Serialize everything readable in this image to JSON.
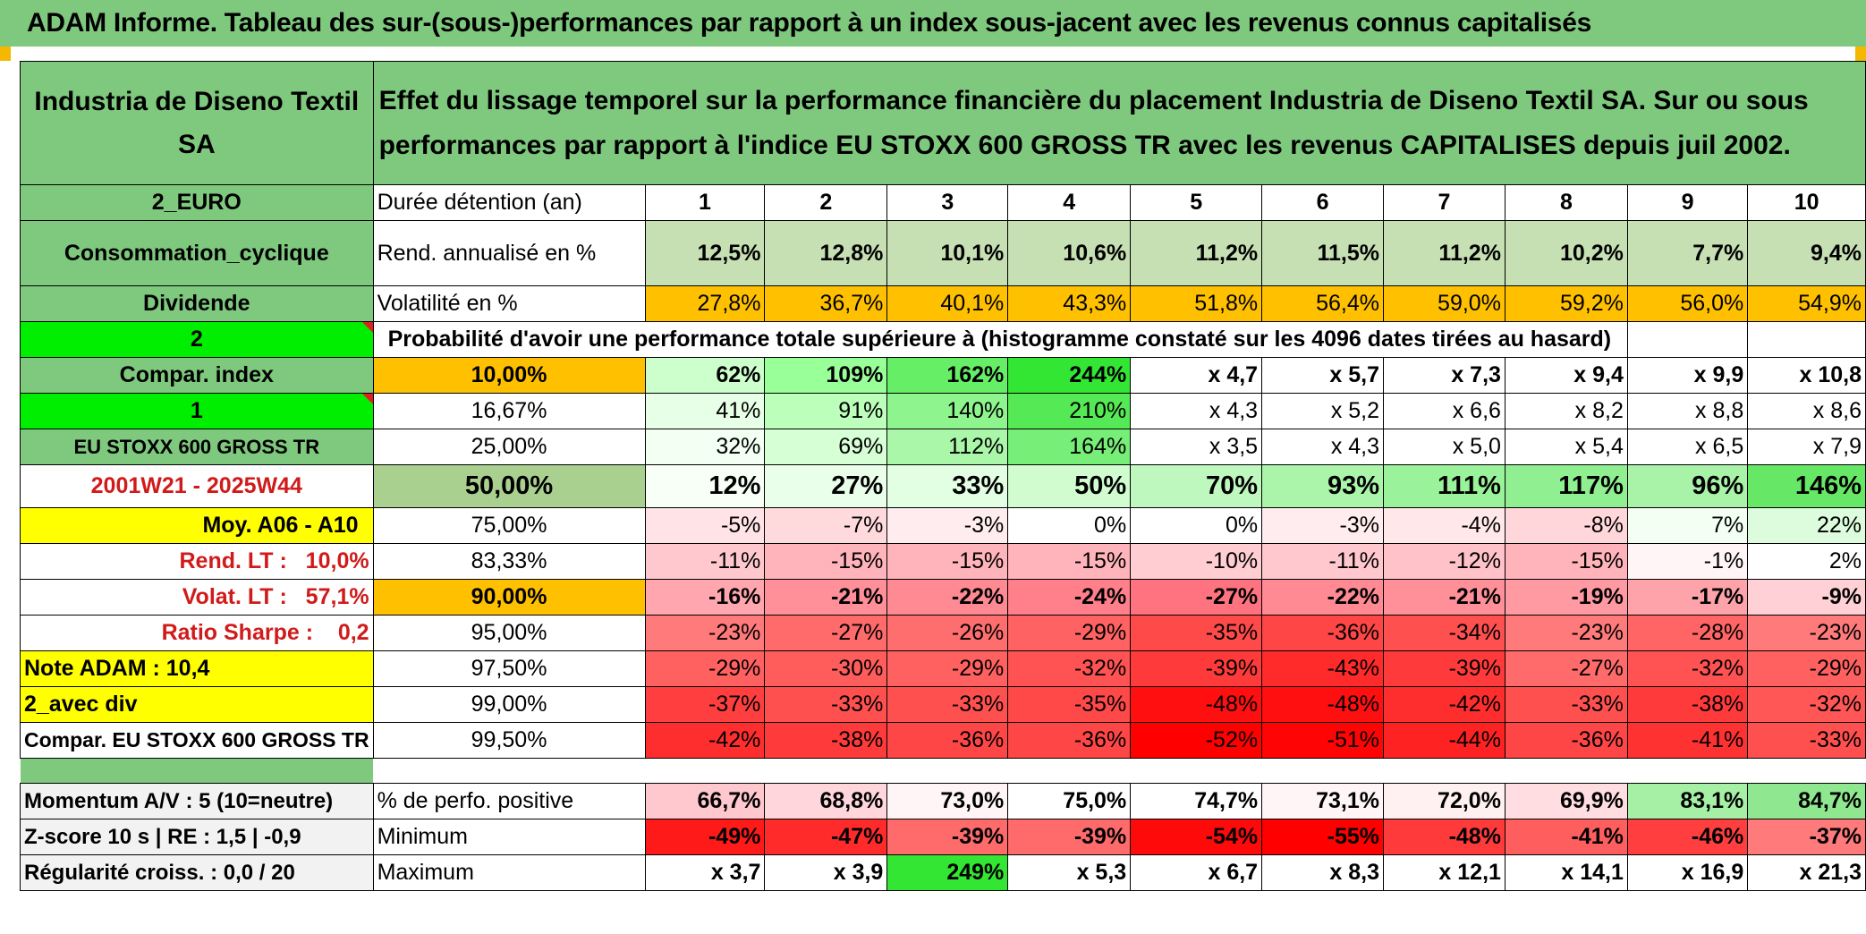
{
  "title": "ADAM Informe. Tableau des sur-(sous-)performances par rapport à un index sous-jacent avec les revenus connus capitalisés",
  "header": {
    "company": "Industria de Diseno Textil SA",
    "description": "Effet du lissage temporel sur la performance financière du placement Industria de Diseno Textil SA. Sur ou sous performances par rapport à l'indice EU STOXX 600 GROSS TR avec les revenus CAPITALISES depuis juil 2002."
  },
  "colors": {
    "green_header": "#7fc97f",
    "orange": "#ffc000",
    "yellow": "#ffff00",
    "bright_green": "#00ee00",
    "red_text": "#d11a1a"
  },
  "left_labels": {
    "currency": "2_EURO",
    "sector": "Consommation_cyclique",
    "dividend": "Dividende",
    "n2": "2",
    "compar_index": "Compar. index",
    "n1": "1",
    "index_name": "EU STOXX 600 GROSS TR",
    "period": "2001W21 - 2025W44",
    "moy": "Moy. A06 - A10",
    "rend_lt": "Rend. LT :   10,0%",
    "volat_lt": "Volat. LT :   57,1%",
    "sharpe": "Ratio Sharpe :    0,2",
    "note": "Note ADAM : 10,4",
    "avec_div": "2_avec div",
    "compar_full": "Compar. EU STOXX 600 GROSS TR",
    "momentum": "Momentum A/V : 5 (10=neutre)",
    "zscore": "Z-score 10 s | RE : 1,5 | -0,9",
    "regularite": "Régularité croiss. : 0,0 / 20"
  },
  "row_labels": {
    "duration": "Durée détention (an)",
    "rend": "Rend. annualisé en %",
    "volat": "Volatilité en %",
    "proba": "Probabilité d'avoir une performance totale supérieure à (histogramme constaté sur les 4096 dates tirées au hasard)",
    "pos": "% de perfo. positive",
    "min": "Minimum",
    "max": "Maximum"
  },
  "years": [
    "1",
    "2",
    "3",
    "4",
    "5",
    "6",
    "7",
    "8",
    "9",
    "10"
  ],
  "rend": [
    "12,5%",
    "12,8%",
    "10,1%",
    "10,6%",
    "11,2%",
    "11,5%",
    "11,2%",
    "10,2%",
    "7,7%",
    "9,4%"
  ],
  "volat": [
    "27,8%",
    "36,7%",
    "40,1%",
    "43,3%",
    "51,8%",
    "56,4%",
    "59,0%",
    "59,2%",
    "56,0%",
    "54,9%"
  ],
  "proba_rows": [
    {
      "pct": "10,00%",
      "vals": [
        "62%",
        "109%",
        "162%",
        "244%",
        "x 4,7",
        "x 5,7",
        "x 7,3",
        "x 9,4",
        "x 9,9",
        "x 10,8"
      ]
    },
    {
      "pct": "16,67%",
      "vals": [
        "41%",
        "91%",
        "140%",
        "210%",
        "x 4,3",
        "x 5,2",
        "x 6,6",
        "x 8,2",
        "x 8,8",
        "x 8,6"
      ]
    },
    {
      "pct": "25,00%",
      "vals": [
        "32%",
        "69%",
        "112%",
        "164%",
        "x 3,5",
        "x 4,3",
        "x 5,0",
        "x 5,4",
        "x 6,5",
        "x 7,9"
      ]
    },
    {
      "pct": "50,00%",
      "vals": [
        "12%",
        "27%",
        "33%",
        "50%",
        "70%",
        "93%",
        "111%",
        "117%",
        "96%",
        "146%"
      ]
    },
    {
      "pct": "75,00%",
      "vals": [
        "-5%",
        "-7%",
        "-3%",
        "0%",
        "0%",
        "-3%",
        "-4%",
        "-8%",
        "7%",
        "22%"
      ]
    },
    {
      "pct": "83,33%",
      "vals": [
        "-11%",
        "-15%",
        "-15%",
        "-15%",
        "-10%",
        "-11%",
        "-12%",
        "-15%",
        "-1%",
        "2%"
      ]
    },
    {
      "pct": "90,00%",
      "vals": [
        "-16%",
        "-21%",
        "-22%",
        "-24%",
        "-27%",
        "-22%",
        "-21%",
        "-19%",
        "-17%",
        "-9%"
      ]
    },
    {
      "pct": "95,00%",
      "vals": [
        "-23%",
        "-27%",
        "-26%",
        "-29%",
        "-35%",
        "-36%",
        "-34%",
        "-23%",
        "-28%",
        "-23%"
      ]
    },
    {
      "pct": "97,50%",
      "vals": [
        "-29%",
        "-30%",
        "-29%",
        "-32%",
        "-39%",
        "-43%",
        "-39%",
        "-27%",
        "-32%",
        "-29%"
      ]
    },
    {
      "pct": "99,00%",
      "vals": [
        "-37%",
        "-33%",
        "-33%",
        "-35%",
        "-48%",
        "-48%",
        "-42%",
        "-33%",
        "-38%",
        "-32%"
      ]
    },
    {
      "pct": "99,50%",
      "vals": [
        "-42%",
        "-38%",
        "-36%",
        "-36%",
        "-52%",
        "-51%",
        "-44%",
        "-36%",
        "-41%",
        "-33%"
      ]
    }
  ],
  "pos": [
    "66,7%",
    "68,8%",
    "73,0%",
    "75,0%",
    "74,7%",
    "73,1%",
    "72,0%",
    "69,9%",
    "83,1%",
    "84,7%"
  ],
  "min": [
    "-49%",
    "-47%",
    "-39%",
    "-39%",
    "-54%",
    "-55%",
    "-48%",
    "-41%",
    "-46%",
    "-37%"
  ],
  "max": [
    "x 3,7",
    "x 3,9",
    "249%",
    "x 5,3",
    "x 6,7",
    "x 8,3",
    "x 12,1",
    "x 14,1",
    "x 16,9",
    "x 21,3"
  ]
}
